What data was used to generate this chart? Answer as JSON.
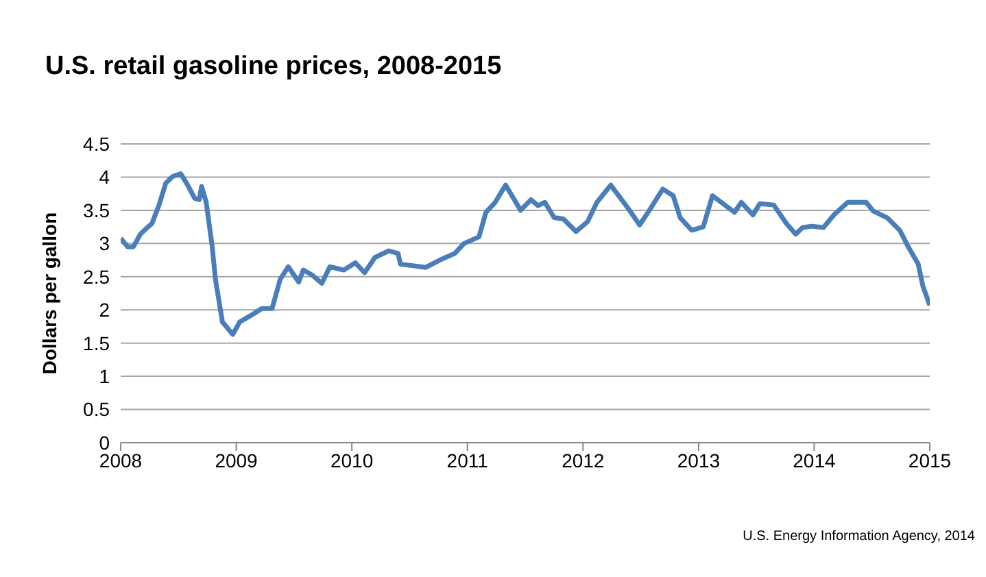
{
  "chart_data": {
    "type": "line",
    "title": "U.S. retail gasoline prices, 2008-2015",
    "ylabel": "Dollars per gallon",
    "annotations": [
      "U.S. Energy Information Agency, 2014"
    ],
    "xlim": [
      2008,
      2015
    ],
    "xticks": [
      2008,
      2009,
      2010,
      2011,
      2012,
      2013,
      2014,
      2015
    ],
    "ylim": [
      0,
      4.5
    ],
    "yticks": [
      0,
      0.5,
      1,
      1.5,
      2,
      2.5,
      3,
      3.5,
      4,
      4.5
    ],
    "grid": "y",
    "legend": false,
    "marker": "none",
    "line_style": "solid",
    "series": [
      {
        "color": "#4a7ebb",
        "x": [
          2008.0,
          2008.06,
          2008.11,
          2008.17,
          2008.23,
          2008.27,
          2008.33,
          2008.39,
          2008.45,
          2008.52,
          2008.58,
          2008.64,
          2008.68,
          2008.7,
          2008.74,
          2008.79,
          2008.82,
          2008.88,
          2008.97,
          2009.03,
          2009.09,
          2009.15,
          2009.22,
          2009.31,
          2009.38,
          2009.45,
          2009.54,
          2009.58,
          2009.66,
          2009.74,
          2009.81,
          2009.93,
          2010.03,
          2010.11,
          2010.2,
          2010.32,
          2010.4,
          2010.42,
          2010.64,
          2010.76,
          2010.89,
          2010.97,
          2011.1,
          2011.16,
          2011.24,
          2011.33,
          2011.46,
          2011.55,
          2011.61,
          2011.67,
          2011.75,
          2011.83,
          2011.94,
          2012.04,
          2012.12,
          2012.24,
          2012.39,
          2012.49,
          2012.57,
          2012.69,
          2012.78,
          2012.84,
          2012.94,
          2013.04,
          2013.12,
          2013.31,
          2013.37,
          2013.47,
          2013.53,
          2013.65,
          2013.76,
          2013.84,
          2013.9,
          2013.98,
          2014.08,
          2014.17,
          2014.29,
          2014.45,
          2014.51,
          2014.63,
          2014.74,
          2014.82,
          2014.9,
          2014.94,
          2015.0
        ],
        "values": [
          3.08,
          2.95,
          2.95,
          3.14,
          3.24,
          3.3,
          3.57,
          3.91,
          4.01,
          4.05,
          3.88,
          3.68,
          3.66,
          3.86,
          3.62,
          2.98,
          2.46,
          1.82,
          1.63,
          1.82,
          1.88,
          1.94,
          2.02,
          2.02,
          2.46,
          2.65,
          2.42,
          2.6,
          2.52,
          2.4,
          2.65,
          2.6,
          2.71,
          2.56,
          2.79,
          2.89,
          2.85,
          2.69,
          2.64,
          2.75,
          2.85,
          3.0,
          3.1,
          3.47,
          3.62,
          3.88,
          3.5,
          3.66,
          3.57,
          3.62,
          3.39,
          3.37,
          3.18,
          3.33,
          3.62,
          3.88,
          3.53,
          3.28,
          3.49,
          3.82,
          3.72,
          3.39,
          3.2,
          3.25,
          3.72,
          3.47,
          3.62,
          3.43,
          3.6,
          3.58,
          3.3,
          3.14,
          3.24,
          3.26,
          3.24,
          3.43,
          3.62,
          3.62,
          3.49,
          3.39,
          3.2,
          2.93,
          2.69,
          2.36,
          2.07
        ]
      }
    ]
  }
}
